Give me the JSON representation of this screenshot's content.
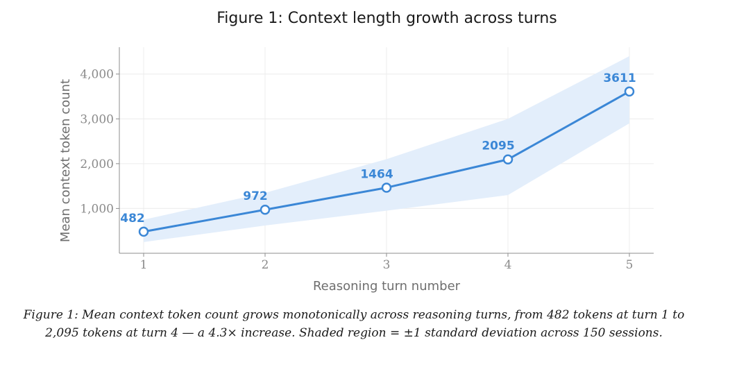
{
  "chart_data": {
    "type": "line",
    "title": "Figure 1: Context length growth across turns",
    "xlabel": "Reasoning turn number",
    "ylabel": "Mean context token count",
    "x": [
      1,
      2,
      3,
      4,
      5
    ],
    "x_tick_labels": [
      "1",
      "2",
      "3",
      "4",
      "5"
    ],
    "y_ticks": [
      1000,
      2000,
      3000,
      4000
    ],
    "y_tick_labels": [
      "1,000",
      "2,000",
      "3,000",
      "4,000"
    ],
    "xlim": [
      0.8,
      5.2
    ],
    "ylim": [
      0,
      4600
    ],
    "series": [
      {
        "name": "Mean context token count",
        "values": [
          482,
          972,
          1464,
          2095,
          3611
        ],
        "data_labels": [
          "482",
          "972",
          "1464",
          "2095",
          "3611"
        ],
        "band_upper": [
          750,
          1350,
          2100,
          3000,
          4400
        ],
        "band_lower": [
          250,
          620,
          950,
          1300,
          2900
        ],
        "color": "#3b87d6",
        "band_color": "#e3eefb"
      }
    ],
    "grid": true
  },
  "caption": {
    "text": "Figure 1: Mean context token count grows monotonically across reasoning turns, from 482 tokens at turn 1 to 2,095 tokens at turn 4 — a 4.3× increase. Shaded region = ±1 standard deviation across 150 sessions."
  }
}
